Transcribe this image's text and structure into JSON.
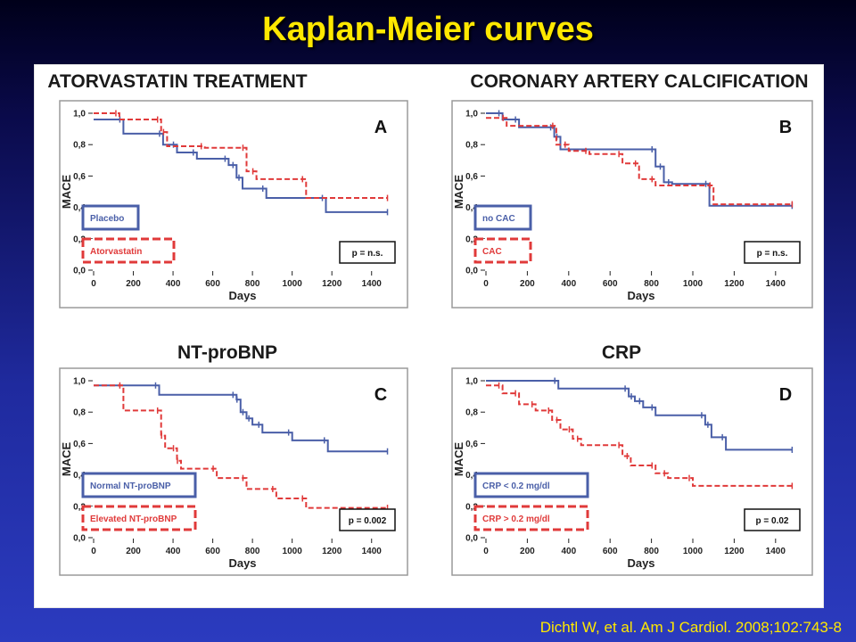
{
  "slide": {
    "title": "Kaplan-Meier curves",
    "citation": "Dichtl W, et al. Am J Cardiol. 2008;102:743-8"
  },
  "colors": {
    "blue": "#4a5fa8",
    "red": "#e03a3a",
    "title_yellow": "#ffe800"
  },
  "chart_data": [
    {
      "type": "line",
      "title": "ATORVASTATIN TREATMENT",
      "panel_letter": "A",
      "xlabel": "Days",
      "ylabel": "MACE",
      "xlim": [
        0,
        1500
      ],
      "ylim": [
        0,
        1
      ],
      "x_ticks": [
        "0",
        "200",
        "400",
        "600",
        "800",
        "1000",
        "1200",
        "1400"
      ],
      "y_ticks": [
        "0,0",
        "0,2",
        "0,4",
        "0,6",
        "0,8",
        "1,0"
      ],
      "p_value": "p = n.s.",
      "series": [
        {
          "name": "Placebo",
          "color": "blue",
          "dashed": false,
          "x": [
            0,
            150,
            150,
            350,
            350,
            420,
            420,
            520,
            520,
            680,
            680,
            720,
            720,
            750,
            750,
            870,
            870,
            1170,
            1170,
            1480
          ],
          "y": [
            0.96,
            0.96,
            0.87,
            0.87,
            0.8,
            0.8,
            0.75,
            0.75,
            0.71,
            0.71,
            0.67,
            0.67,
            0.59,
            0.59,
            0.52,
            0.52,
            0.46,
            0.46,
            0.37,
            0.37
          ]
        },
        {
          "name": "Atorvastatin",
          "color": "red",
          "dashed": true,
          "x": [
            0,
            130,
            130,
            340,
            340,
            370,
            370,
            560,
            560,
            770,
            770,
            820,
            820,
            1070,
            1070,
            1480
          ],
          "y": [
            1.0,
            1.0,
            0.96,
            0.96,
            0.88,
            0.88,
            0.79,
            0.79,
            0.78,
            0.78,
            0.63,
            0.63,
            0.58,
            0.58,
            0.46,
            0.46
          ]
        }
      ]
    },
    {
      "type": "line",
      "title": "CORONARY ARTERY CALCIFICATION",
      "panel_letter": "B",
      "xlabel": "Days",
      "ylabel": "MACE",
      "xlim": [
        0,
        1500
      ],
      "ylim": [
        0,
        1
      ],
      "x_ticks": [
        "0",
        "200",
        "400",
        "600",
        "800",
        "1000",
        "1200",
        "1400"
      ],
      "y_ticks": [
        "0,0",
        "0,2",
        "0,4",
        "0,6",
        "0,8",
        "1,0"
      ],
      "p_value": "p = n.s.",
      "series": [
        {
          "name": "no CAC",
          "color": "blue",
          "dashed": false,
          "x": [
            0,
            80,
            80,
            160,
            160,
            330,
            330,
            360,
            360,
            820,
            820,
            860,
            860,
            900,
            900,
            1080,
            1080,
            1480
          ],
          "y": [
            1.0,
            1.0,
            0.96,
            0.96,
            0.91,
            0.91,
            0.85,
            0.85,
            0.77,
            0.77,
            0.66,
            0.66,
            0.56,
            0.56,
            0.55,
            0.55,
            0.41,
            0.41
          ]
        },
        {
          "name": "CAC",
          "color": "red",
          "dashed": true,
          "x": [
            0,
            100,
            100,
            340,
            340,
            400,
            400,
            500,
            500,
            660,
            660,
            740,
            740,
            820,
            820,
            1100,
            1100,
            1480
          ],
          "y": [
            0.97,
            0.97,
            0.92,
            0.92,
            0.8,
            0.8,
            0.76,
            0.76,
            0.74,
            0.74,
            0.68,
            0.68,
            0.58,
            0.58,
            0.54,
            0.54,
            0.42,
            0.42
          ]
        }
      ]
    },
    {
      "type": "line",
      "title": "NT-proBNP",
      "panel_letter": "C",
      "xlabel": "Days",
      "ylabel": "MACE",
      "xlim": [
        0,
        1500
      ],
      "ylim": [
        0,
        1
      ],
      "x_ticks": [
        "0",
        "200",
        "400",
        "600",
        "800",
        "1000",
        "1200",
        "1400"
      ],
      "y_ticks": [
        "0,0",
        "0,2",
        "0,4",
        "0,6",
        "0,8",
        "1,0"
      ],
      "p_value": "p = 0.002",
      "series": [
        {
          "name": "Normal NT-proBNP",
          "color": "blue",
          "dashed": false,
          "x": [
            0,
            330,
            330,
            720,
            720,
            740,
            740,
            770,
            770,
            800,
            800,
            850,
            850,
            1000,
            1000,
            1180,
            1180,
            1480
          ],
          "y": [
            0.97,
            0.97,
            0.91,
            0.91,
            0.88,
            0.88,
            0.8,
            0.8,
            0.76,
            0.76,
            0.72,
            0.72,
            0.67,
            0.67,
            0.62,
            0.62,
            0.55,
            0.55
          ]
        },
        {
          "name": "Elevated NT-proBNP",
          "color": "red",
          "dashed": true,
          "x": [
            0,
            150,
            150,
            340,
            340,
            360,
            360,
            420,
            420,
            440,
            440,
            620,
            620,
            770,
            770,
            920,
            920,
            1070,
            1070,
            1480
          ],
          "y": [
            0.97,
            0.97,
            0.81,
            0.81,
            0.65,
            0.65,
            0.57,
            0.57,
            0.49,
            0.49,
            0.44,
            0.44,
            0.38,
            0.38,
            0.31,
            0.31,
            0.25,
            0.25,
            0.19,
            0.19
          ]
        }
      ]
    },
    {
      "type": "line",
      "title": "CRP",
      "panel_letter": "D",
      "xlabel": "Days",
      "ylabel": "MACE",
      "xlim": [
        0,
        1500
      ],
      "ylim": [
        0,
        1
      ],
      "x_ticks": [
        "0",
        "200",
        "400",
        "600",
        "800",
        "1000",
        "1200",
        "1400"
      ],
      "y_ticks": [
        "0,0",
        "0,2",
        "0,4",
        "0,6",
        "0,8",
        "1,0"
      ],
      "p_value": "p = 0.02",
      "series": [
        {
          "name": "CRP < 0.2 mg/dl",
          "color": "blue",
          "dashed": false,
          "x": [
            0,
            350,
            350,
            690,
            690,
            720,
            720,
            760,
            760,
            820,
            820,
            1060,
            1060,
            1090,
            1090,
            1160,
            1160,
            1480
          ],
          "y": [
            1.0,
            1.0,
            0.95,
            0.95,
            0.9,
            0.9,
            0.87,
            0.87,
            0.83,
            0.83,
            0.78,
            0.78,
            0.72,
            0.72,
            0.64,
            0.64,
            0.56,
            0.56
          ]
        },
        {
          "name": "CRP > 0.2 mg/dl",
          "color": "red",
          "dashed": true,
          "x": [
            0,
            80,
            80,
            160,
            160,
            240,
            240,
            320,
            320,
            360,
            360,
            420,
            420,
            460,
            460,
            660,
            660,
            700,
            700,
            820,
            820,
            880,
            880,
            1000,
            1000,
            1480
          ],
          "y": [
            0.97,
            0.97,
            0.92,
            0.92,
            0.85,
            0.85,
            0.81,
            0.81,
            0.75,
            0.75,
            0.69,
            0.69,
            0.63,
            0.63,
            0.59,
            0.59,
            0.52,
            0.52,
            0.46,
            0.46,
            0.41,
            0.41,
            0.38,
            0.38,
            0.33,
            0.33
          ]
        }
      ]
    }
  ]
}
